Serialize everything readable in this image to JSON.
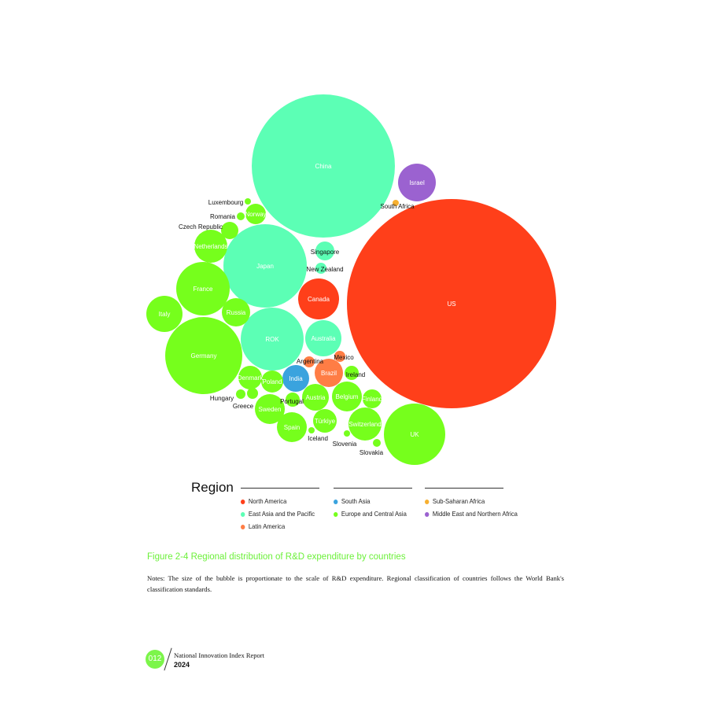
{
  "chart_data": {
    "type": "bubble",
    "size_meaning": "R&D expenditure",
    "regions": [
      {
        "name": "North America",
        "color": "#ff3f1a"
      },
      {
        "name": "East Asia and the Pacific",
        "color": "#5cffb5"
      },
      {
        "name": "Latin America",
        "color": "#ff7d45"
      },
      {
        "name": "South Asia",
        "color": "#3aa3de"
      },
      {
        "name": "Europe and Central Asia",
        "color": "#76ff1c"
      },
      {
        "name": "Sub-Saharan Africa",
        "color": "#f7b030"
      },
      {
        "name": "Middle East and Northern Africa",
        "color": "#9b62d0"
      }
    ],
    "bubbles": [
      {
        "name": "US",
        "region": "North America"
      },
      {
        "name": "China",
        "region": "East Asia and the Pacific"
      },
      {
        "name": "Japan",
        "region": "East Asia and the Pacific"
      },
      {
        "name": "Germany",
        "region": "Europe and Central Asia"
      },
      {
        "name": "ROK",
        "region": "East Asia and the Pacific"
      },
      {
        "name": "UK",
        "region": "Europe and Central Asia"
      },
      {
        "name": "France",
        "region": "Europe and Central Asia"
      },
      {
        "name": "Canada",
        "region": "North America"
      },
      {
        "name": "Israel",
        "region": "Middle East and Northern Africa"
      },
      {
        "name": "Italy",
        "region": "Europe and Central Asia"
      },
      {
        "name": "Australia",
        "region": "East Asia and the Pacific"
      },
      {
        "name": "Netherlands",
        "region": "Europe and Central Asia"
      },
      {
        "name": "Switzerland",
        "region": "Europe and Central Asia"
      },
      {
        "name": "Sweden",
        "region": "Europe and Central Asia"
      },
      {
        "name": "Belgium",
        "region": "Europe and Central Asia"
      },
      {
        "name": "Spain",
        "region": "Europe and Central Asia"
      },
      {
        "name": "Russia",
        "region": "Europe and Central Asia"
      },
      {
        "name": "Brazil",
        "region": "Latin America"
      },
      {
        "name": "India",
        "region": "South Asia"
      },
      {
        "name": "Austria",
        "region": "Europe and Central Asia"
      },
      {
        "name": "Denmark",
        "region": "Europe and Central Asia"
      },
      {
        "name": "Türkiye",
        "region": "Europe and Central Asia"
      },
      {
        "name": "Poland",
        "region": "Europe and Central Asia"
      },
      {
        "name": "Norway",
        "region": "Europe and Central Asia"
      },
      {
        "name": "Finland",
        "region": "Europe and Central Asia"
      },
      {
        "name": "Singapore",
        "region": "East Asia and the Pacific"
      },
      {
        "name": "Czech Republic",
        "region": "Europe and Central Asia"
      },
      {
        "name": "Ireland",
        "region": "Europe and Central Asia"
      },
      {
        "name": "Portugal",
        "region": "Europe and Central Asia"
      },
      {
        "name": "Argentina",
        "region": "Latin America"
      },
      {
        "name": "Mexico",
        "region": "Latin America"
      },
      {
        "name": "New Zealand",
        "region": "East Asia and the Pacific"
      },
      {
        "name": "Greece",
        "region": "Europe and Central Asia"
      },
      {
        "name": "Hungary",
        "region": "Europe and Central Asia"
      },
      {
        "name": "Romania",
        "region": "Europe and Central Asia"
      },
      {
        "name": "Slovakia",
        "region": "Europe and Central Asia"
      },
      {
        "name": "Luxembourg",
        "region": "Europe and Central Asia"
      },
      {
        "name": "Slovenia",
        "region": "Europe and Central Asia"
      },
      {
        "name": "Iceland",
        "region": "Europe and Central Asia"
      },
      {
        "name": "South Africa",
        "region": "Sub-Saharan Africa"
      }
    ],
    "legend_title": "Region",
    "legend_placement": "bottom"
  },
  "caption": "Figure 2-4   Regional distribution of R&D expenditure by countries",
  "notes": "Notes: The size of the bubble is proportionate to the scale of R&D expenditure. Regional classification of countries follows the World Bank's classification standards.",
  "footer": {
    "page": "012",
    "report": "National Innovation Index Report",
    "year": "2024"
  }
}
